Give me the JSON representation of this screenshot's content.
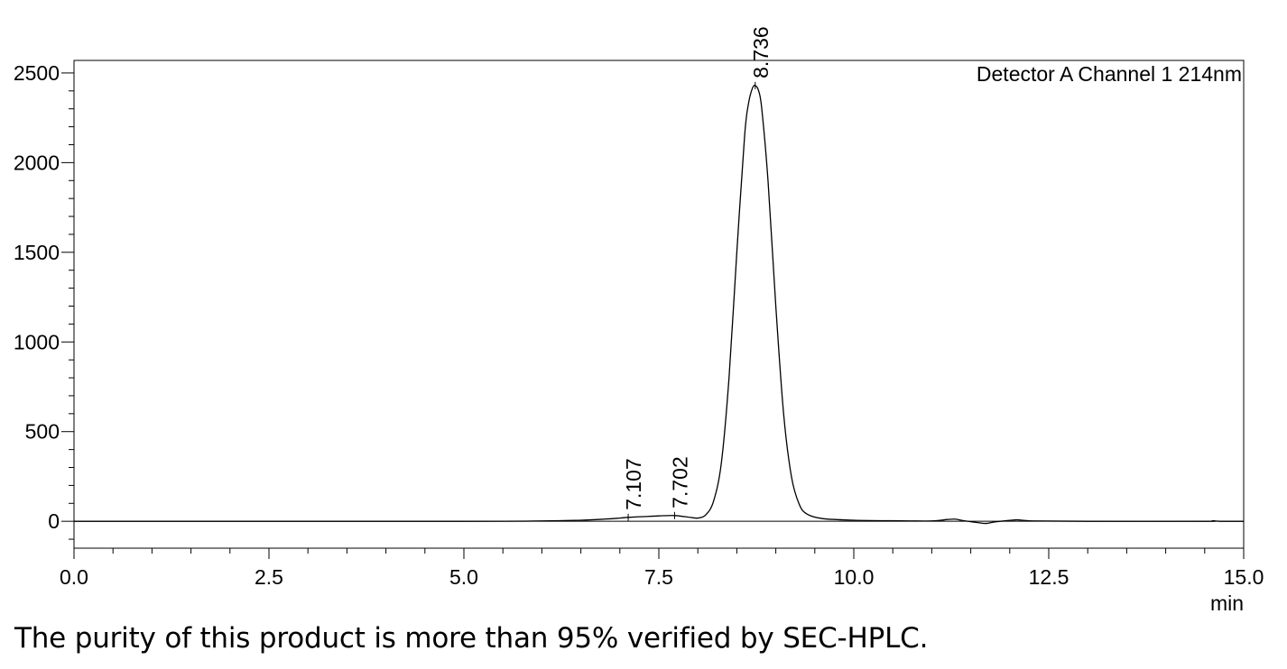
{
  "chart_data": {
    "type": "line",
    "detector_label": "Detector A Channel 1 214nm",
    "x_unit_label": "min",
    "xlim": [
      0,
      15
    ],
    "ylim": [
      -150,
      2570
    ],
    "x_ticks": [
      {
        "value": 0,
        "label": "0.0"
      },
      {
        "value": 2.5,
        "label": "2.5"
      },
      {
        "value": 5,
        "label": "5.0"
      },
      {
        "value": 7.5,
        "label": "7.5"
      },
      {
        "value": 10,
        "label": "10.0"
      },
      {
        "value": 12.5,
        "label": "12.5"
      },
      {
        "value": 15,
        "label": "15.0"
      }
    ],
    "y_ticks": [
      {
        "value": 0,
        "label": "0"
      },
      {
        "value": 500,
        "label": "500"
      },
      {
        "value": 1000,
        "label": "1000"
      },
      {
        "value": 1500,
        "label": "1500"
      },
      {
        "value": 2000,
        "label": "2000"
      },
      {
        "value": 2500,
        "label": "2500"
      }
    ],
    "series": [
      {
        "x": [
          0.0,
          5.0,
          6.0,
          6.5,
          6.8,
          7.0,
          7.107,
          7.3,
          7.5,
          7.702,
          7.9,
          8.0,
          8.1,
          8.2,
          8.3,
          8.4,
          8.5,
          8.6,
          8.65,
          8.7,
          8.736,
          8.78,
          8.82,
          8.9,
          9.0,
          9.1,
          9.2,
          9.3,
          9.4,
          9.6,
          10.0,
          10.5,
          11.0,
          11.2,
          11.3,
          11.4,
          11.6,
          11.7,
          11.8,
          12.0,
          12.1,
          12.3,
          13.0,
          14.5,
          14.6,
          14.7,
          15.0
        ],
        "y": [
          0,
          0,
          2,
          6,
          12,
          18,
          22,
          26,
          30,
          32,
          22,
          18,
          35,
          110,
          320,
          800,
          1500,
          2150,
          2330,
          2415,
          2430,
          2400,
          2300,
          1900,
          1200,
          600,
          250,
          95,
          40,
          15,
          6,
          3,
          2,
          10,
          12,
          4,
          -8,
          -12,
          -4,
          5,
          8,
          2,
          0,
          0,
          3,
          0,
          0
        ]
      }
    ],
    "peak_labels": [
      {
        "x": 7.107,
        "label": "7.107",
        "near_y": 22
      },
      {
        "x": 7.702,
        "label": "7.702",
        "near_y": 32
      },
      {
        "x": 8.736,
        "label": "8.736",
        "near_y": 2430
      }
    ]
  },
  "caption": "The purity of this product is more than 95% verified by SEC-HPLC."
}
